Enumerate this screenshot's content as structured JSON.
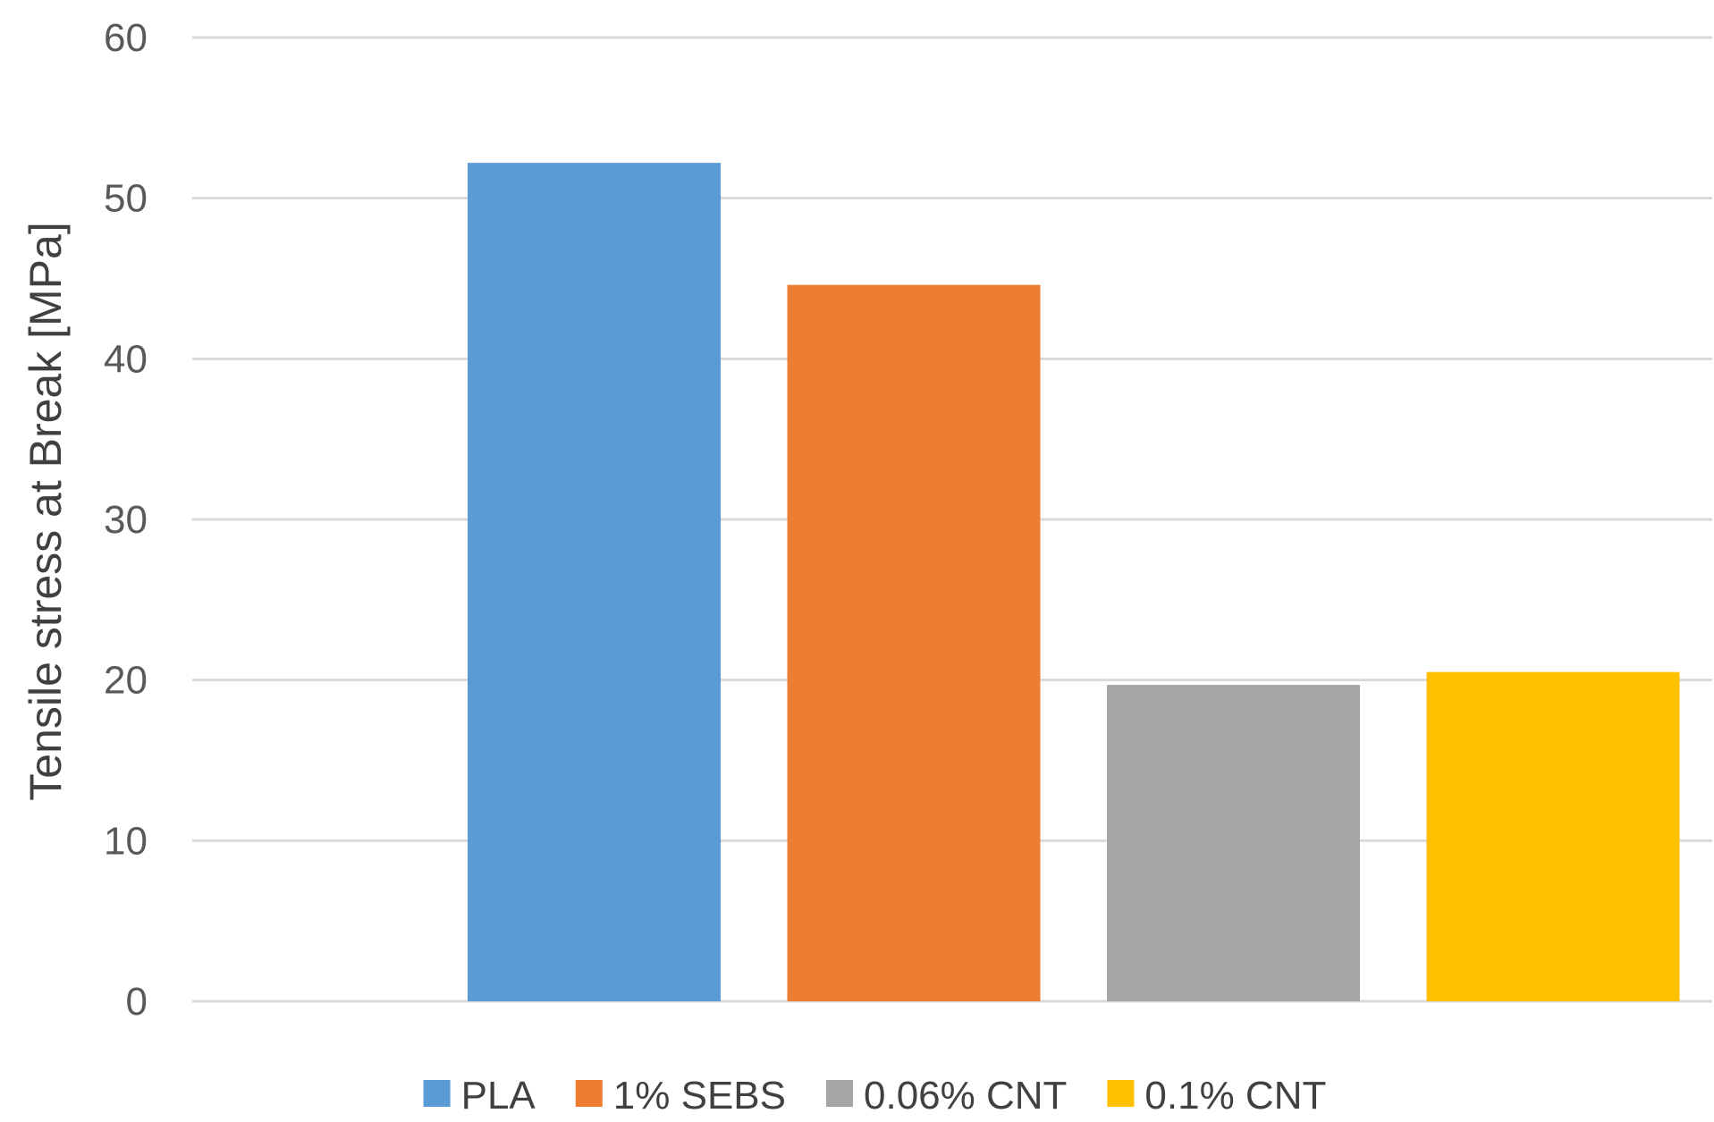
{
  "chart_data": {
    "type": "bar",
    "title": "",
    "xlabel": "",
    "ylabel": "Tensile stress at Break [MPa]",
    "ylim": [
      0,
      60
    ],
    "yticks": [
      0,
      10,
      20,
      30,
      40,
      50,
      60
    ],
    "grid": true,
    "legend_position": "bottom",
    "categories": [
      ""
    ],
    "series": [
      {
        "name": "PLA",
        "values": [
          52.2
        ],
        "color": "#5b9bd5"
      },
      {
        "name": "1% SEBS",
        "values": [
          44.6
        ],
        "color": "#ed7d31"
      },
      {
        "name": "0.06% CNT",
        "values": [
          19.7
        ],
        "color": "#a5a5a5"
      },
      {
        "name": "0.1% CNT",
        "values": [
          20.5
        ],
        "color": "#ffc000"
      }
    ]
  }
}
